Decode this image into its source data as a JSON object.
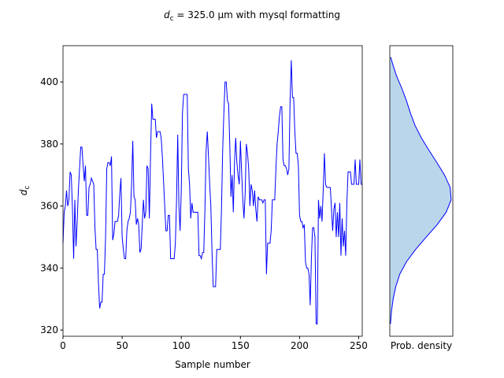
{
  "title": {
    "symbol": "d",
    "subscript": "c",
    "text": " = 325.0 μm with mysql formatting"
  },
  "chart_data": [
    {
      "type": "line",
      "xlabel": "Sample number",
      "ylabel": {
        "symbol": "d",
        "subscript": "c"
      },
      "color": "#0000ff",
      "xlim": [
        0,
        253
      ],
      "xticks": [
        0,
        50,
        100,
        150,
        200,
        250
      ],
      "ylim": [
        318,
        411.7
      ],
      "yticks": [
        320,
        340,
        360,
        380,
        400
      ],
      "x": [
        0,
        1,
        2,
        3,
        4,
        5,
        6,
        7,
        8,
        9,
        10,
        11,
        12,
        13,
        14,
        15,
        16,
        17,
        18,
        19,
        20,
        21,
        22,
        23,
        24,
        25,
        26,
        27,
        28,
        29,
        30,
        31,
        32,
        33,
        34,
        35,
        36,
        37,
        38,
        39,
        40,
        41,
        42,
        43,
        44,
        45,
        46,
        47,
        48,
        49,
        50,
        51,
        52,
        53,
        54,
        55,
        56,
        57,
        58,
        59,
        60,
        61,
        62,
        63,
        64,
        65,
        66,
        67,
        68,
        69,
        70,
        71,
        72,
        73,
        74,
        75,
        76,
        77,
        78,
        79,
        80,
        81,
        82,
        83,
        84,
        85,
        86,
        87,
        88,
        89,
        90,
        91,
        92,
        93,
        94,
        95,
        96,
        97,
        98,
        99,
        100,
        101,
        102,
        103,
        104,
        105,
        106,
        107,
        108,
        109,
        110,
        111,
        112,
        113,
        114,
        115,
        116,
        117,
        118,
        119,
        120,
        121,
        122,
        123,
        124,
        125,
        126,
        127,
        128,
        129,
        130,
        131,
        132,
        133,
        134,
        135,
        136,
        137,
        138,
        139,
        140,
        141,
        142,
        143,
        144,
        145,
        146,
        147,
        148,
        149,
        150,
        151,
        152,
        153,
        154,
        155,
        156,
        157,
        158,
        159,
        160,
        161,
        162,
        163,
        164,
        165,
        166,
        167,
        168,
        169,
        170,
        171,
        172,
        173,
        174,
        175,
        176,
        177,
        178,
        179,
        180,
        181,
        182,
        183,
        184,
        185,
        186,
        187,
        188,
        189,
        190,
        191,
        192,
        193,
        194,
        195,
        196,
        197,
        198,
        199,
        200,
        201,
        202,
        203,
        204,
        205,
        206,
        207,
        208,
        209,
        210,
        211,
        212,
        213,
        214,
        215,
        216,
        217,
        218,
        219,
        220,
        221,
        222,
        223,
        224,
        225,
        226,
        227,
        228,
        229,
        230,
        231,
        232,
        233,
        234,
        235,
        236,
        237,
        238,
        239,
        240,
        241,
        242,
        243,
        244,
        245,
        246,
        247,
        248,
        249,
        250,
        251,
        252,
        253
      ],
      "values": [
        348,
        358,
        360,
        365,
        360,
        362,
        371,
        370,
        359,
        343,
        362,
        347,
        355,
        365,
        372,
        379,
        379,
        373,
        368,
        373,
        357,
        357,
        366,
        367,
        369,
        368,
        367,
        353,
        346,
        346,
        335,
        327,
        329,
        329,
        338,
        338,
        350,
        372,
        374,
        374,
        373,
        376,
        349,
        351,
        355,
        355,
        355,
        357,
        364,
        369,
        350,
        346,
        343,
        343,
        352,
        355,
        356,
        358,
        367,
        381,
        363,
        362,
        354,
        356,
        354,
        345,
        346,
        354,
        362,
        356,
        358,
        373,
        372,
        356,
        376,
        393,
        388,
        388,
        388,
        382,
        384,
        384,
        384,
        382,
        376,
        368,
        360,
        352,
        352,
        357,
        357,
        343,
        343,
        343,
        343,
        348,
        362,
        383,
        360,
        352,
        365,
        390,
        396,
        396,
        396,
        396,
        372,
        367,
        356,
        361,
        358,
        358,
        358,
        358,
        358,
        344,
        344,
        343,
        345,
        345,
        359,
        378,
        384,
        376,
        367,
        360,
        345,
        334,
        334,
        334,
        346,
        346,
        346,
        346,
        359,
        378,
        390,
        400,
        400,
        394,
        393,
        380,
        363,
        370,
        358,
        374,
        382,
        374,
        370,
        367,
        381,
        371,
        362,
        356,
        364,
        380,
        377,
        372,
        360,
        367,
        365,
        360,
        365,
        359,
        355,
        363,
        362,
        362,
        362,
        361,
        362,
        362,
        338,
        348,
        348,
        348,
        352,
        362,
        362,
        362,
        372,
        380,
        384,
        389,
        392,
        392,
        375,
        373,
        373,
        372,
        370,
        372,
        394,
        407,
        395,
        395,
        384,
        377,
        377,
        373,
        357,
        355,
        355,
        353,
        354,
        342,
        340,
        340,
        338,
        328,
        343,
        353,
        353,
        350,
        322,
        322,
        362,
        356,
        360,
        355,
        365,
        377,
        367,
        366,
        366,
        366,
        366,
        359,
        352,
        359,
        361,
        350,
        358,
        350,
        361,
        344,
        356,
        347,
        352,
        344,
        361,
        371,
        371,
        371,
        367,
        367,
        367,
        375,
        367,
        367,
        367,
        375,
        367,
        367
      ]
    },
    {
      "type": "density",
      "xlabel": "Prob. density",
      "color": "#0000ff",
      "fill": "#bad6ea",
      "xlim": [
        0,
        0.019
      ],
      "ylim": [
        318,
        411.7
      ],
      "y": [
        322,
        326,
        330,
        334,
        338,
        342,
        346,
        350,
        354,
        358,
        362,
        366,
        370,
        374,
        378,
        382,
        386,
        390,
        394,
        398,
        402,
        406,
        408
      ],
      "values": [
        0.0002,
        0.0005,
        0.001,
        0.0018,
        0.003,
        0.005,
        0.0078,
        0.011,
        0.0143,
        0.017,
        0.0185,
        0.0182,
        0.0165,
        0.0142,
        0.0118,
        0.0095,
        0.0076,
        0.0062,
        0.005,
        0.0036,
        0.002,
        0.0008,
        0.0003
      ]
    }
  ]
}
